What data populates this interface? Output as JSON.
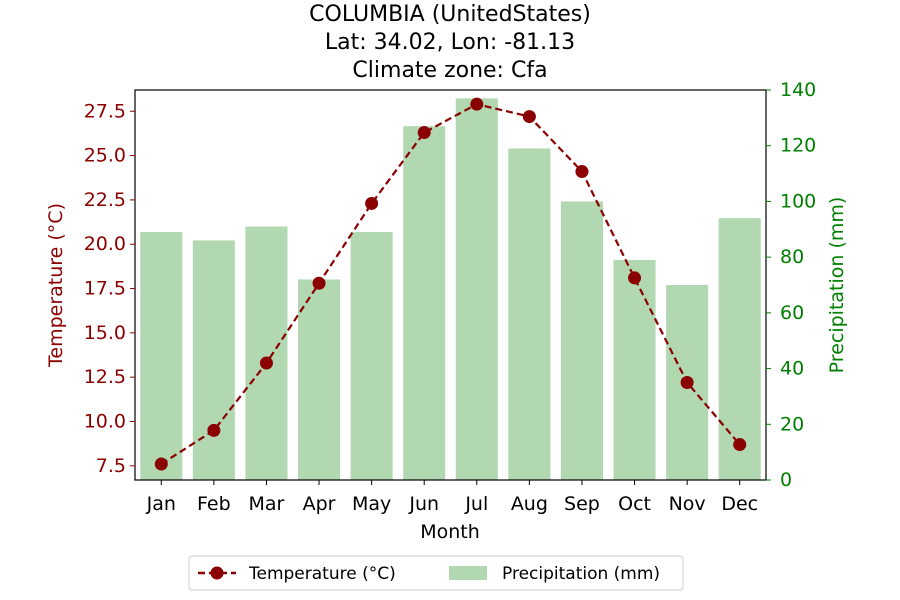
{
  "chart_data": {
    "type": "bar",
    "title_lines": [
      "COLUMBIA (UnitedStates)",
      "Lat: 34.02, Lon: -81.13",
      "Climate zone: Cfa"
    ],
    "xlabel": "Month",
    "categories": [
      "Jan",
      "Feb",
      "Mar",
      "Apr",
      "May",
      "Jun",
      "Jul",
      "Aug",
      "Sep",
      "Oct",
      "Nov",
      "Dec"
    ],
    "temperature": {
      "name": "Temperature (°C)",
      "axis_label": "Temperature (°C)",
      "color": "#8b0000",
      "style": "dashed line with circle markers",
      "values": [
        7.6,
        9.5,
        13.3,
        17.8,
        22.3,
        26.3,
        27.9,
        27.2,
        24.1,
        18.1,
        12.2,
        8.7
      ],
      "ylim": [
        6.7,
        28.7
      ],
      "ticks": [
        "7.5",
        "10.0",
        "12.5",
        "15.0",
        "17.5",
        "20.0",
        "22.5",
        "25.0",
        "27.5"
      ]
    },
    "precipitation": {
      "name": "Precipitation (mm)",
      "axis_label": "Precipitation (mm)",
      "color": "#2ca02c",
      "bar_color": "#b2d8b2",
      "values": [
        89,
        86,
        91,
        72,
        89,
        127,
        137,
        119,
        100,
        79,
        70,
        94
      ],
      "ylim": [
        0,
        140
      ],
      "ticks": [
        "0",
        "20",
        "40",
        "60",
        "80",
        "100",
        "120",
        "140"
      ]
    },
    "legend": {
      "placement": "bottom-center",
      "entries": [
        "Temperature (°C)",
        "Precipitation (mm)"
      ]
    }
  }
}
